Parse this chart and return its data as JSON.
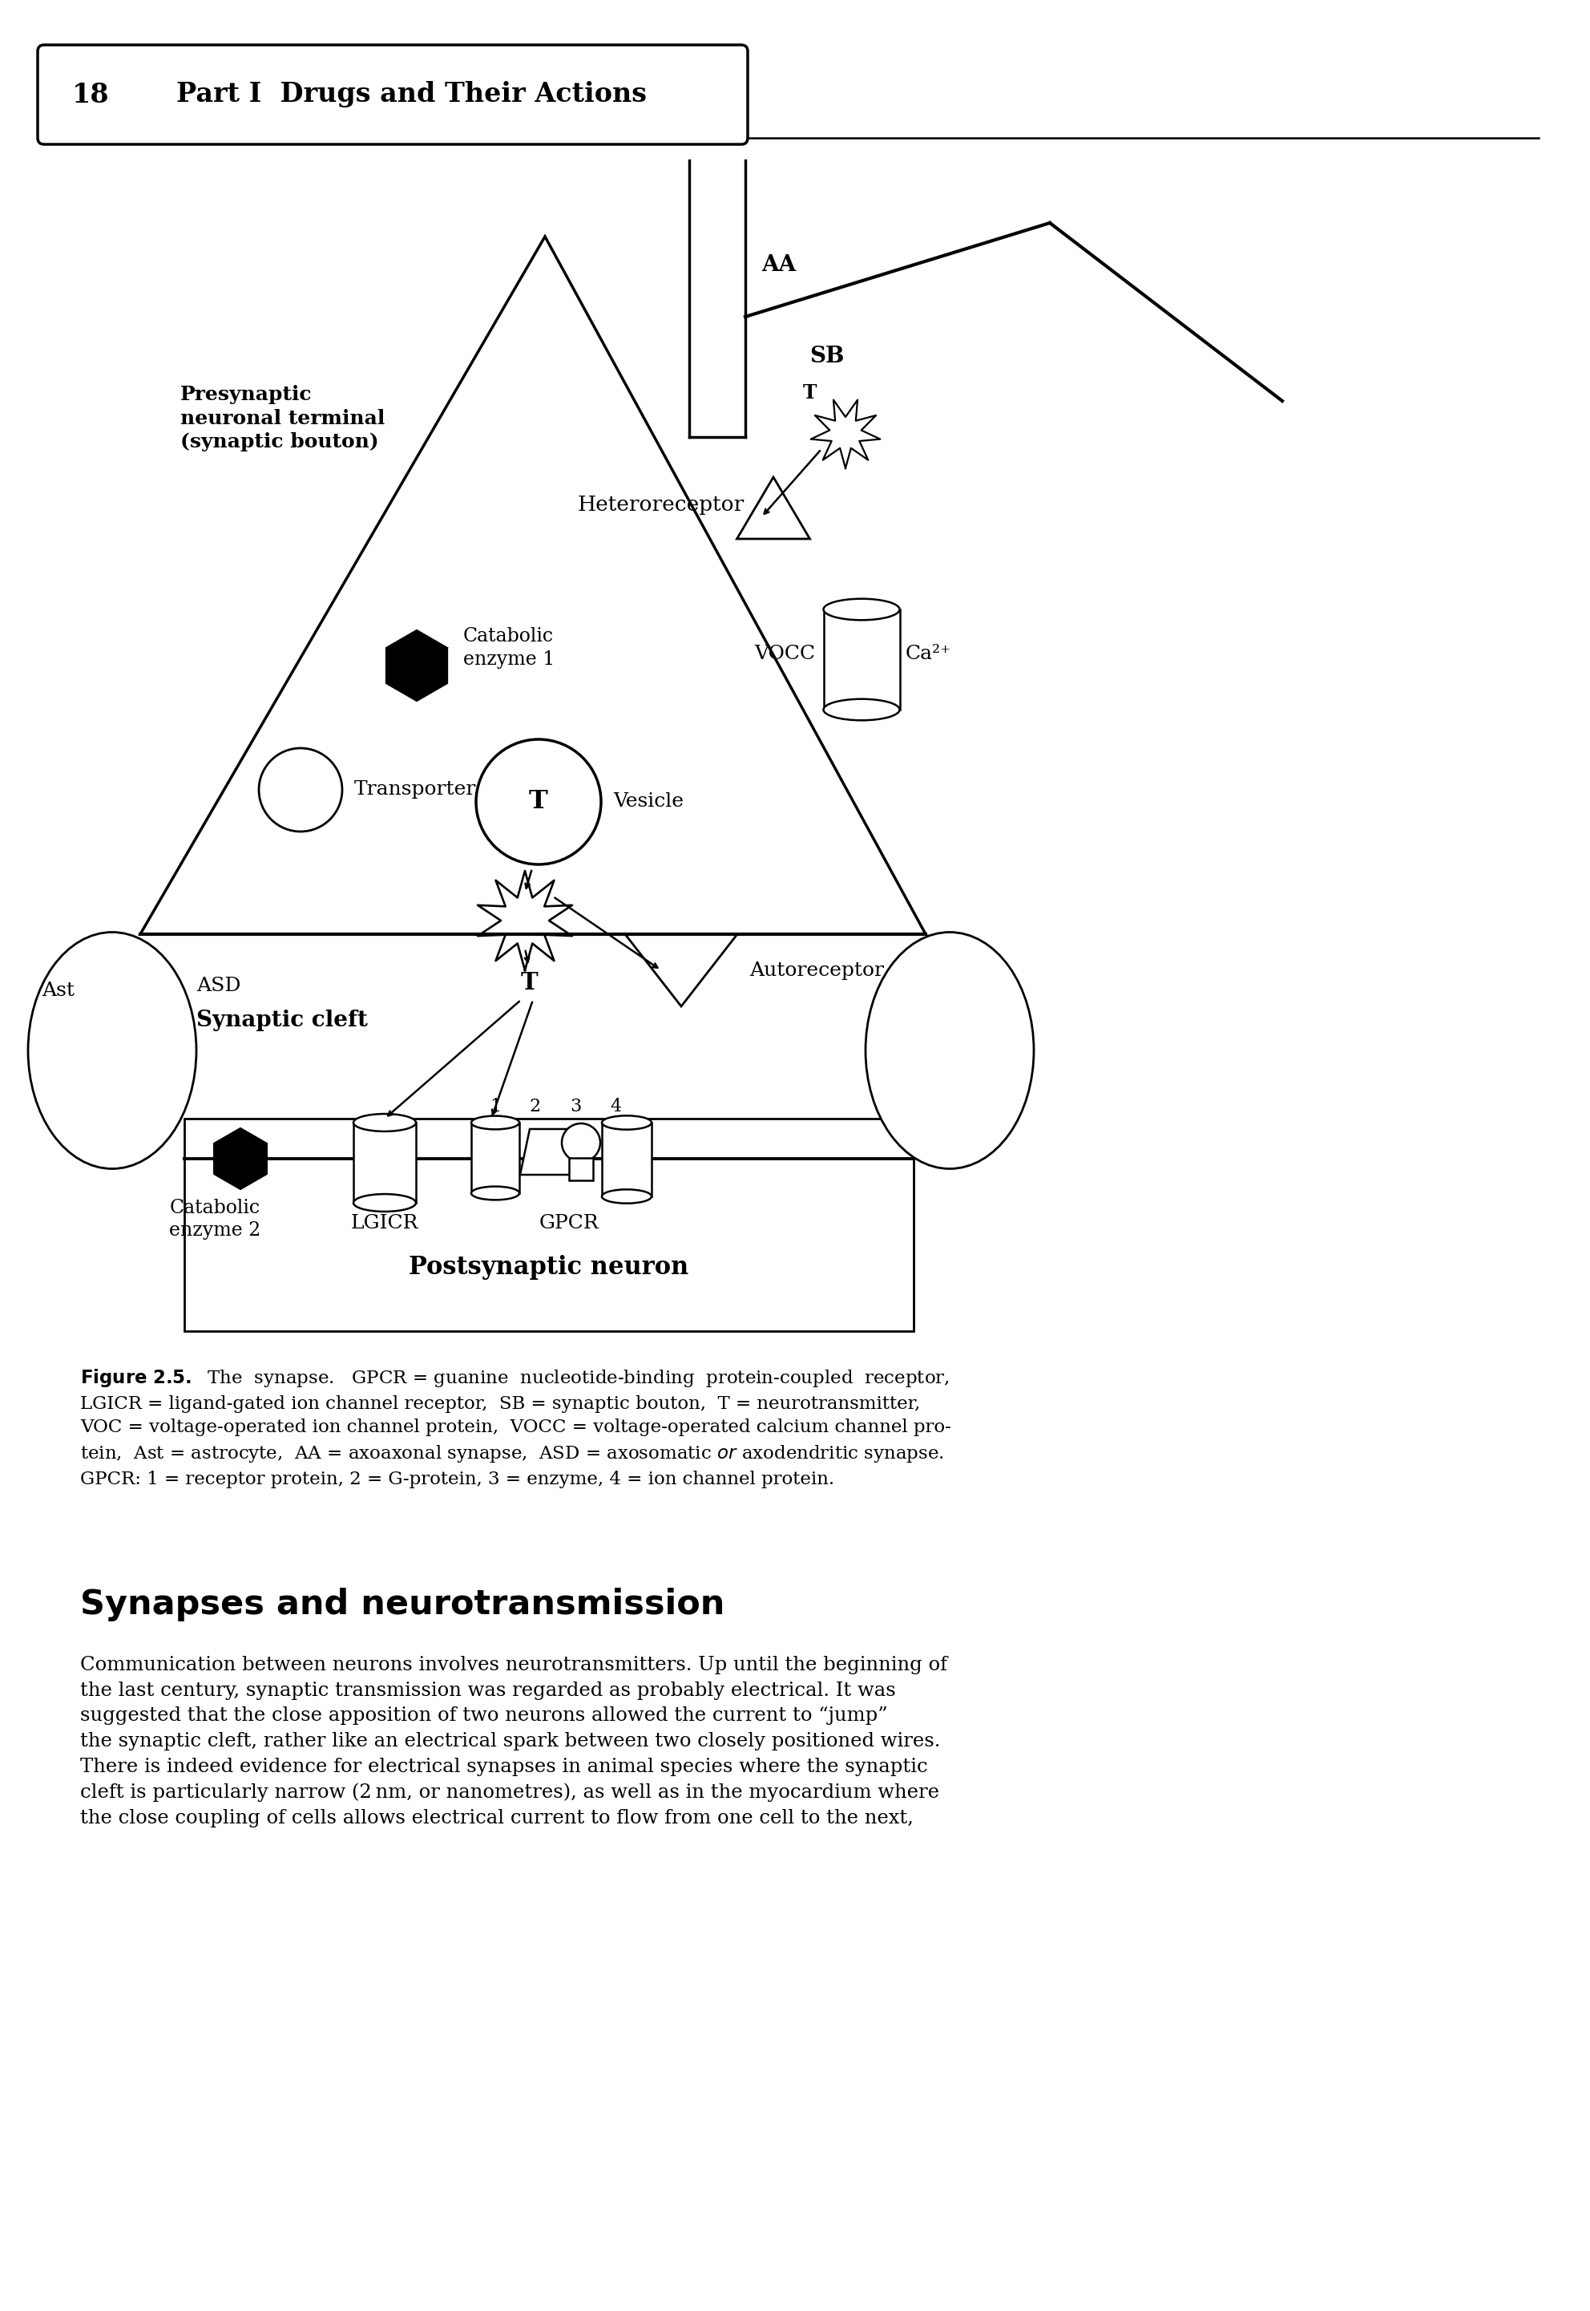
{
  "page_number": "18",
  "header_text": "Part I  Drugs and Their Actions",
  "bg_color": "#ffffff",
  "line_color": "#000000",
  "section_title": "Synapses and neurotransmission",
  "body_line1": "Communication between neurons involves neurotransmitters. Up until the beginning of",
  "body_line2": "the last century, synaptic transmission was regarded as probably electrical. It was",
  "body_line3": "suggested that the close apposition of two neurons allowed the current to “jump”",
  "body_line4": "the synaptic cleft, rather like an electrical spark between two closely positioned wires.",
  "body_line5": "There is indeed evidence for electrical synapses in animal species where the synaptic",
  "body_line6": "cleft is particularly narrow (2 nm, or nanometres), as well as in the myocardium where",
  "body_line7": "the close coupling of cells allows electrical current to flow from one cell to the next,"
}
